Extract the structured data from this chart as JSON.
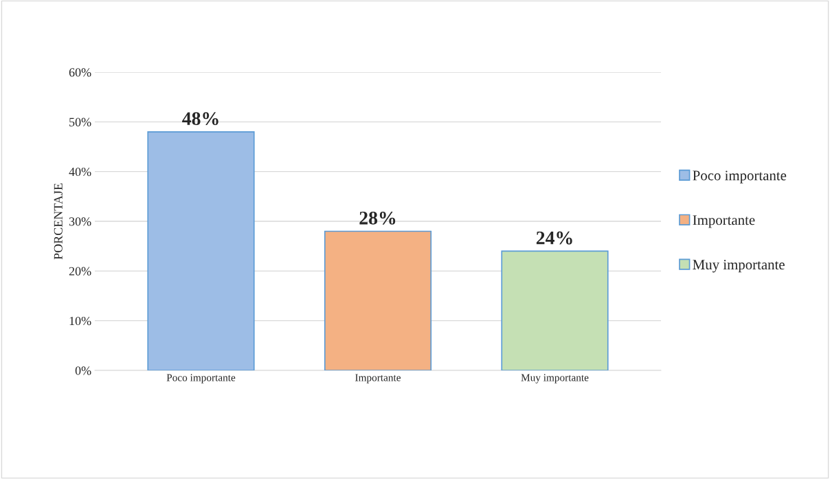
{
  "chart_data": {
    "type": "bar",
    "ylabel": "PORCENTAJE",
    "categories": [
      "Poco importante",
      "Importante",
      "Muy importante"
    ],
    "series": [
      {
        "name": "Poco importante",
        "color": "#9dbde6",
        "values": [
          48,
          null,
          null
        ],
        "value_labels": [
          "48%",
          null,
          null
        ]
      },
      {
        "name": "Importante",
        "color": "#f4b183",
        "values": [
          null,
          28,
          null
        ],
        "value_labels": [
          null,
          "28%",
          null
        ]
      },
      {
        "name": "Muy importante",
        "color": "#c5e0b4",
        "values": [
          null,
          null,
          24
        ],
        "value_labels": [
          null,
          null,
          "24%"
        ]
      }
    ],
    "ylim": [
      0,
      60
    ],
    "yticks": [
      {
        "value": 0,
        "label": "0%"
      },
      {
        "value": 10,
        "label": "10%"
      },
      {
        "value": 20,
        "label": "20%"
      },
      {
        "value": 30,
        "label": "30%"
      },
      {
        "value": 40,
        "label": "40%"
      },
      {
        "value": 50,
        "label": "50%"
      },
      {
        "value": 60,
        "label": "60%"
      }
    ],
    "grid": "y",
    "legend": "right"
  }
}
